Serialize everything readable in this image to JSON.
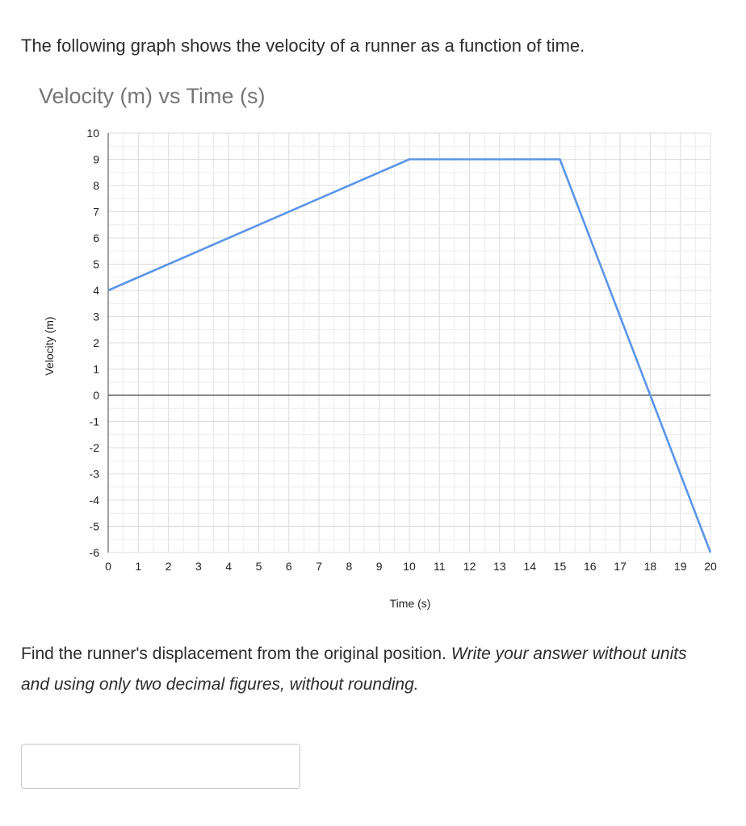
{
  "intro_text": "The following graph shows the velocity of a runner as a function of time.",
  "question": {
    "plain": "Find the runner's displacement from the original position. ",
    "italic": "Write your answer without units and using only two decimal figures, without rounding."
  },
  "answer": {
    "value": ""
  },
  "colors": {
    "line": "#5b95e9",
    "grid": "#dcdcdc",
    "axis": "#444444"
  },
  "chart_data": {
    "type": "line",
    "title": "Velocity (m) vs Time (s)",
    "xlabel": "Time (s)",
    "ylabel": "Velocity (m)",
    "xlim": [
      0,
      20
    ],
    "ylim": [
      -6,
      10
    ],
    "grid": true,
    "x_ticks": [
      0,
      1,
      2,
      3,
      4,
      5,
      6,
      7,
      8,
      9,
      10,
      11,
      12,
      13,
      14,
      15,
      16,
      17,
      18,
      19,
      20
    ],
    "y_ticks": [
      10,
      9,
      8,
      7,
      6,
      5,
      4,
      3,
      2,
      1,
      0,
      -1,
      -2,
      -3,
      -4,
      -5,
      -6
    ],
    "series": [
      {
        "x": [
          0,
          10,
          15,
          20
        ],
        "y": [
          4,
          9,
          9,
          -6
        ]
      }
    ]
  }
}
